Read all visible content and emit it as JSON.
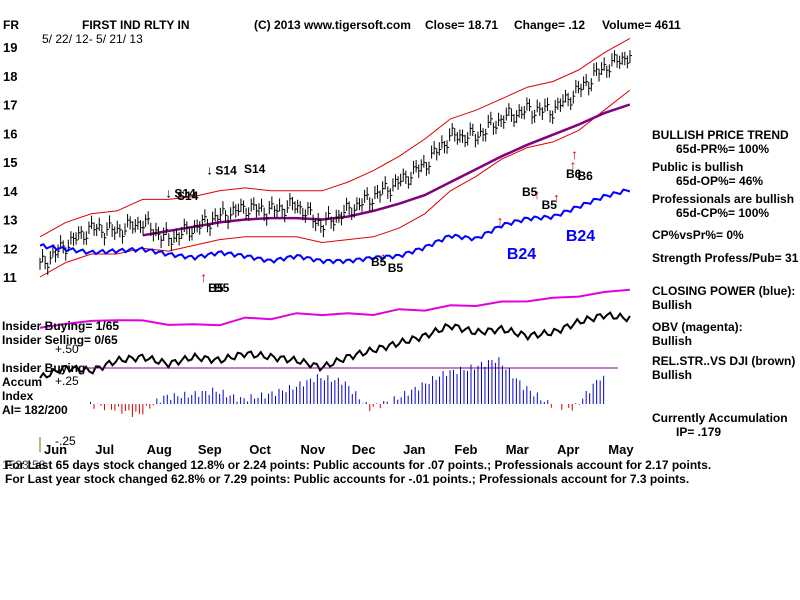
{
  "header": {
    "ticker": "FR",
    "name": "FIRST IND RLTY IN",
    "copyright": "(C) 2013 www.tigersoft.com",
    "close": "Close=  18.71",
    "change": "Change= .12",
    "volume": "Volume= 4611",
    "date_range": "5/ 22/ 12- 5/ 21/ 13"
  },
  "colors": {
    "price_bars": "#000000",
    "band": "#dd0000",
    "ma": "#800080",
    "closing_power": "#0000ff",
    "obv": "#e000e0",
    "relstr": "#000000",
    "accum_pos": "#0000cc",
    "accum_neg": "#cc0000",
    "signal": "#dd0000",
    "divider": "#800080"
  },
  "labels": {
    "insider_buying_1": "Insider Buying= 1/65",
    "insider_selling": "Insider Selling= 0/65",
    "insider_buying_2": "Insider Buying",
    "accum": "Accum",
    "index": "Index",
    "ai": "AI= 182/200",
    "plus50": "+.50",
    "plus25": "+.25",
    "minus25": "-.25",
    "extra": "1.5",
    "obscured": "1533:58"
  },
  "signals": {
    "b5_1": "B5",
    "b5_2": "B5",
    "b5_3": "B5",
    "b6": "B6",
    "s14_1": "S14",
    "s14_2": "S14",
    "b24_1": "B24",
    "b24_2": "B24"
  },
  "right_panel": {
    "bullish_trend": "BULLISH PRICE TREND",
    "pr": "65d-PR%= 100%",
    "public_bullish": "Public is bullish",
    "op": "65d-OP%= 46%",
    "pros_bullish": "Professionals are bullish",
    "cp": "65d-CP%= 100%",
    "cp_vs_pr": "CP%vsPr%=  0%",
    "strength": "Strength Profess/Pub= 31",
    "closing_power_label": "CLOSING POWER (blue):",
    "closing_power_val": "Bullish",
    "obv_label": "OBV (magenta):",
    "obv_val": "Bullish",
    "relstr_label": "REL.STR..VS DJI (brown)",
    "relstr_val": "Bullish",
    "accum_label": "Currently Accumulation",
    "ip": "IP= .179"
  },
  "footer": {
    "line1": "For Last 65 days stock changed  12.8% or  2.24 points:  Public accounts for  .07 points.;  Professionals account for  2.17 points.",
    "line2": "For Last year stock changed  62.8% or  7.29 points:  Public accounts for -.01 points.;  Professionals account for  7.3 points."
  },
  "chart_data": {
    "type": "line",
    "title": "FIRST IND RLTY IN",
    "xlabel": "",
    "ylabel": "",
    "ylim": [
      11,
      19
    ],
    "yticks": [
      19,
      18,
      17,
      16,
      15,
      14,
      13,
      12,
      11
    ],
    "months": [
      "Jun",
      "Jul",
      "Aug",
      "Sep",
      "Oct",
      "Nov",
      "Dec",
      "Jan",
      "Feb",
      "Mar",
      "Apr",
      "May"
    ],
    "x": [
      0,
      0.5,
      1,
      1.5,
      2,
      2.5,
      3,
      3.5,
      4,
      4.5,
      5,
      5.5,
      6,
      6.5,
      7,
      7.5,
      8,
      8.5,
      9,
      9.5,
      10,
      10.5,
      11,
      11.5
    ],
    "series": [
      {
        "name": "Close",
        "values": [
          11.4,
          12.1,
          12.7,
          12.6,
          12.9,
          12.3,
          12.7,
          13.1,
          13.4,
          13.3,
          13.5,
          12.8,
          13.3,
          13.8,
          14.3,
          14.9,
          15.9,
          15.9,
          16.5,
          16.8,
          16.8,
          17.5,
          18.3,
          18.71
        ]
      },
      {
        "name": "Upper Band",
        "values": [
          12.4,
          12.9,
          13.2,
          13.3,
          13.7,
          13.7,
          13.8,
          14.0,
          14.1,
          14.0,
          14.0,
          14.0,
          14.3,
          14.7,
          15.2,
          15.8,
          16.5,
          16.8,
          17.2,
          17.6,
          17.8,
          18.2,
          18.8,
          19.3
        ]
      },
      {
        "name": "Lower Band",
        "values": [
          11.0,
          11.5,
          11.8,
          11.8,
          12.0,
          11.9,
          12.1,
          12.3,
          12.4,
          12.4,
          12.4,
          12.2,
          12.3,
          12.4,
          12.7,
          13.2,
          14.0,
          14.5,
          15.1,
          15.5,
          15.7,
          16.1,
          16.8,
          17.5
        ]
      },
      {
        "name": "65-day MA",
        "values": [
          null,
          null,
          null,
          null,
          12.45,
          12.6,
          12.75,
          12.9,
          13.0,
          13.05,
          13.05,
          13.0,
          13.1,
          13.3,
          13.55,
          13.85,
          14.3,
          14.75,
          15.2,
          15.6,
          15.95,
          16.3,
          16.7,
          17.0
        ]
      }
    ],
    "signals": [
      {
        "label": "B5",
        "month_x": 3.2,
        "price": 11.1
      },
      {
        "label": "B5",
        "month_x": 6.7,
        "price": 11.8
      },
      {
        "label": "B5",
        "month_x": 9.7,
        "price": 14.0
      },
      {
        "label": "B6",
        "month_x": 10.4,
        "price": 15.0
      },
      {
        "label": "S14",
        "month_x": 2.6,
        "price": 13.9
      },
      {
        "label": "S14",
        "month_x": 3.4,
        "price": 14.7
      }
    ],
    "closing_power": [
      0.78,
      0.74,
      0.7,
      0.72,
      0.74,
      0.68,
      0.64,
      0.7,
      0.66,
      0.6,
      0.66,
      0.6,
      0.6,
      0.64,
      0.66,
      0.76,
      0.9,
      0.86,
      1.02,
      1.1,
      1.12,
      1.24,
      1.36,
      1.44
    ],
    "obv": [
      0.1,
      0.2,
      0.25,
      0.3,
      0.25,
      0.2,
      0.15,
      0.2,
      0.3,
      0.35,
      0.4,
      0.45,
      0.4,
      0.45,
      0.5,
      0.55,
      0.6,
      0.65,
      0.7,
      0.75,
      0.8,
      0.85,
      0.95,
      1.0
    ],
    "relstr": [
      0.2,
      0.35,
      0.3,
      0.45,
      0.5,
      0.4,
      0.5,
      0.45,
      0.55,
      0.5,
      0.45,
      0.35,
      0.5,
      0.6,
      0.7,
      0.8,
      0.95,
      0.85,
      0.9,
      0.8,
      0.85,
      1.0,
      1.1,
      1.05
    ],
    "accum_index": [
      0.0,
      -0.05,
      -0.12,
      0.08,
      0.1,
      0.15,
      0.05,
      0.1,
      0.18,
      0.3,
      0.25,
      -0.05,
      0.05,
      0.2,
      0.35,
      0.4,
      0.5,
      0.2,
      0.0,
      -0.05,
      0.3,
      0.15,
      0.25,
      0.2
    ]
  }
}
